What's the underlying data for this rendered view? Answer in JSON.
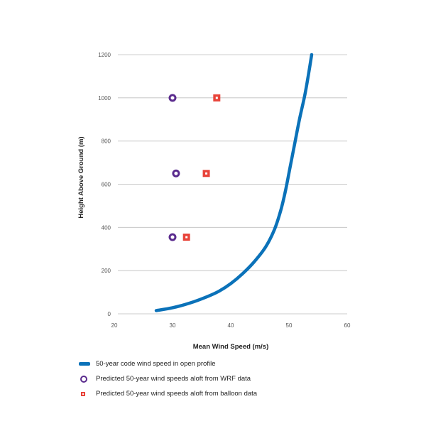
{
  "chart_data": {
    "type": "line",
    "xlabel": "Mean Wind Speed (m/s)",
    "ylabel": "Height Above Ground (m)",
    "xlim": [
      20,
      60
    ],
    "ylim": [
      0,
      1200
    ],
    "x_ticks": [
      "20",
      "30",
      "40",
      "50",
      "60"
    ],
    "y_ticks": [
      "0",
      "200",
      "400",
      "600",
      "800",
      "1000",
      "1200"
    ],
    "grid": "horizontal",
    "legend_position": "bottom",
    "series": [
      {
        "name": "50-year code wind speed in open profile",
        "kind": "line",
        "color": "#0B72B9",
        "points": [
          [
            27.2,
            15
          ],
          [
            30,
            28
          ],
          [
            33,
            50
          ],
          [
            36,
            80
          ],
          [
            38,
            105
          ],
          [
            40,
            140
          ],
          [
            42,
            185
          ],
          [
            44,
            240
          ],
          [
            46,
            310
          ],
          [
            47.5,
            390
          ],
          [
            48.6,
            480
          ],
          [
            49.4,
            570
          ],
          [
            50.2,
            680
          ],
          [
            51,
            790
          ],
          [
            51.8,
            900
          ],
          [
            52.7,
            1010
          ],
          [
            53.3,
            1100
          ],
          [
            53.9,
            1200
          ]
        ]
      },
      {
        "name": "Predicted 50-year wind speeds aloft from WRF data",
        "kind": "scatter",
        "marker": "ring",
        "color": "#5B2C8E",
        "points": [
          [
            30,
            1000
          ],
          [
            30.6,
            650
          ],
          [
            30,
            355
          ]
        ]
      },
      {
        "name": "Predicted 50-year wind speeds aloft from balloon data",
        "kind": "scatter",
        "marker": "square",
        "color": "#E8443A",
        "points": [
          [
            37.6,
            1000
          ],
          [
            35.8,
            650
          ],
          [
            32.4,
            355
          ]
        ]
      }
    ]
  }
}
